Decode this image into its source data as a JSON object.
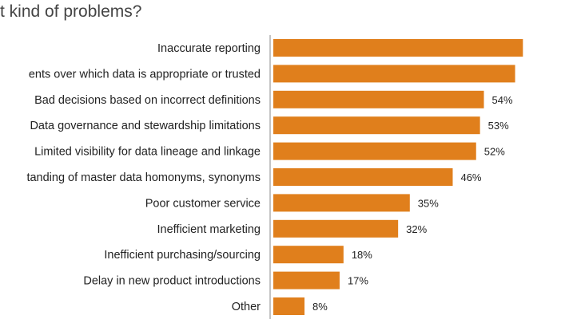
{
  "chart_data": {
    "type": "bar",
    "orientation": "horizontal",
    "title": "t kind of problems?",
    "categories": [
      "Inaccurate reporting",
      "ents over which data is appropriate or trusted",
      "Bad decisions based on incorrect definitions",
      "Data governance and stewardship limitations",
      "Limited visibility for data lineage and linkage",
      "tanding of master data homonyms, synonyms",
      "Poor customer service",
      "Inefficient marketing",
      "Inefficient purchasing/sourcing",
      "Delay in new product introductions",
      "Other"
    ],
    "values": [
      64,
      62,
      54,
      53,
      52,
      46,
      35,
      32,
      18,
      17,
      8
    ],
    "value_labels": [
      "",
      "",
      "54%",
      "53%",
      "52%",
      "46%",
      "35%",
      "32%",
      "18%",
      "17%",
      "8%"
    ],
    "bar_color": "#e07f1c",
    "grid": false
  }
}
